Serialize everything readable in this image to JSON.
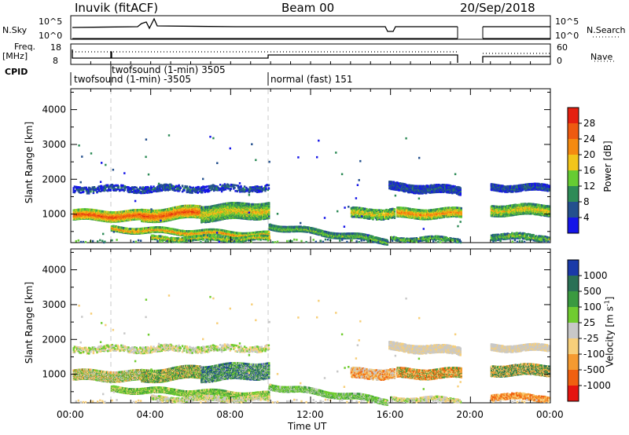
{
  "header": {
    "station": "Inuvik (fitACF)",
    "beam": "Beam 00",
    "date": "20/Sep/2018"
  },
  "summary_labels": {
    "nsky": "N.Sky",
    "nsky_top": "10^5",
    "nsky_bottom": "10^0",
    "nsearch": "N.Search",
    "nsearch_top": "10^5",
    "nsearch_bottom": "10^0",
    "freq_line1": "Freq.",
    "freq_line2": "[MHz]",
    "freq_top": "18",
    "freq_bottom": "8",
    "nave": "Nave",
    "nave_top": "60",
    "nave_bottom": "0",
    "cpid": "CPID"
  },
  "cpid_segments": [
    {
      "text": "twofsound (1-min) 3505",
      "row": "upper"
    },
    {
      "text": "twofsound (1-min) -3505",
      "row": "lower"
    },
    {
      "text": "normal (fast) 151",
      "row": "lower"
    }
  ],
  "colors": {
    "power": [
      "#1515e8",
      "#24508e",
      "#2e8b57",
      "#66cc33",
      "#f2c51a",
      "#f58a10",
      "#ee5a10",
      "#e52010"
    ],
    "velocity": [
      "#e51510",
      "#f06010",
      "#f59a30",
      "#f7cf7a",
      "#c8c8c8",
      "#70cc30",
      "#3a9a40",
      "#2a7055",
      "#1a3aa8"
    ]
  },
  "chart_data": [
    {
      "type": "heatmap",
      "name": "power",
      "ylabel": "Slant Range [km]",
      "xlabel": "Time UT",
      "colorbar_label": "Power [dB]",
      "colorbar_ticks": [
        "4",
        "8",
        "12",
        "16",
        "20",
        "24",
        "28"
      ],
      "y_ticks": [
        "1000",
        "2000",
        "3000",
        "4000"
      ],
      "x_ticks": [
        "00:00",
        "04:00",
        "08:00",
        "12:00",
        "16:00",
        "20:00",
        "00:00"
      ],
      "ylim": [
        180,
        4600
      ],
      "xlim_hours": [
        0,
        24
      ]
    },
    {
      "type": "heatmap",
      "name": "velocity",
      "ylabel": "Slant Range [km]",
      "xlabel": "Time UT",
      "colorbar_label": "Velocity [m s^-1]",
      "colorbar_ticks": [
        "-1000",
        "-500",
        "-100",
        "-25",
        "25",
        "100",
        "500",
        "1000"
      ],
      "y_ticks": [
        "1000",
        "2000",
        "3000",
        "4000"
      ],
      "x_ticks": [
        "00:00",
        "04:00",
        "08:00",
        "12:00",
        "16:00",
        "20:00",
        "00:00"
      ],
      "ylim": [
        180,
        4600
      ],
      "xlim_hours": [
        0,
        24
      ]
    }
  ],
  "axis_titles": {
    "power_ylabel": "Slant Range [km]",
    "vel_ylabel": "Slant Range [km]",
    "power_cbar": "Power [dB]",
    "vel_cbar": "Velocity [m s",
    "vel_cbar_exp": "-1",
    "vel_cbar_end": "]",
    "xlabel": "Time UT"
  },
  "x_ticks": [
    "00:00",
    "04:00",
    "08:00",
    "12:00",
    "16:00",
    "20:00",
    "00:00"
  ],
  "y_ticks": [
    "1000",
    "2000",
    "3000",
    "4000"
  ],
  "power_cbar_ticks": [
    "4",
    "8",
    "12",
    "16",
    "20",
    "24",
    "28"
  ],
  "vel_cbar_ticks": [
    "-1000",
    "-500",
    "-100",
    "-25",
    "25",
    "100",
    "500",
    "1000"
  ]
}
